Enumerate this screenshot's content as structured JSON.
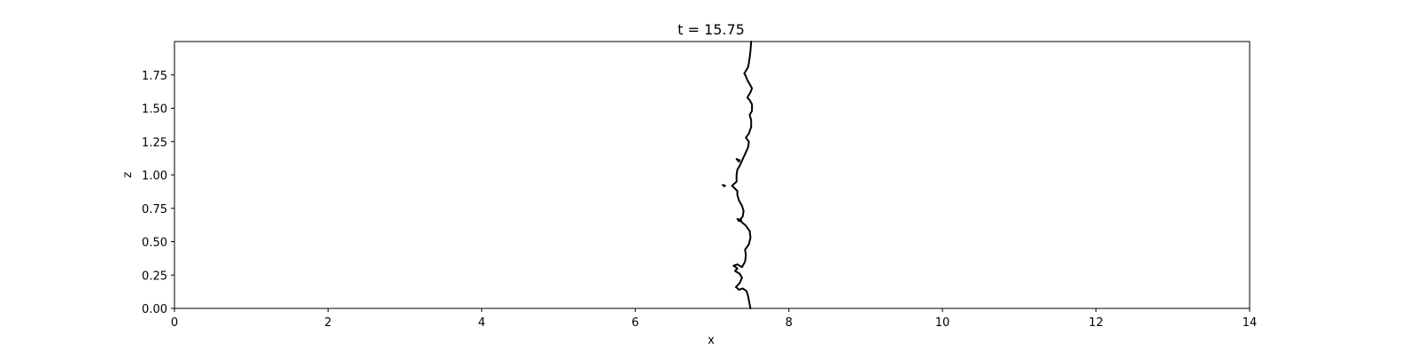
{
  "chart_data": {
    "type": "line",
    "title": "t = 15.75",
    "xlabel": "x",
    "ylabel": "z",
    "xlim": [
      0,
      14
    ],
    "ylim": [
      0,
      2
    ],
    "grid": false,
    "x_ticks": [
      0,
      2,
      4,
      6,
      8,
      10,
      12,
      14
    ],
    "x_tick_labels": [
      "0",
      "2",
      "4",
      "6",
      "8",
      "10",
      "12",
      "14"
    ],
    "y_ticks": [
      0,
      0.25,
      0.5,
      0.75,
      1.0,
      1.25,
      1.5,
      1.75
    ],
    "y_tick_labels": [
      "0.00",
      "0.25",
      "0.50",
      "0.75",
      "1.00",
      "1.25",
      "1.50",
      "1.75"
    ],
    "line_color": "#000000",
    "series": [
      {
        "points": [
          [
            7.5,
            0.0
          ],
          [
            7.49,
            0.03
          ],
          [
            7.48,
            0.06
          ],
          [
            7.47,
            0.09
          ],
          [
            7.45,
            0.13
          ],
          [
            7.4,
            0.15
          ],
          [
            7.35,
            0.14
          ],
          [
            7.31,
            0.16
          ],
          [
            7.36,
            0.19
          ],
          [
            7.39,
            0.23
          ],
          [
            7.36,
            0.26
          ],
          [
            7.3,
            0.28
          ],
          [
            7.33,
            0.3
          ],
          [
            7.28,
            0.32
          ],
          [
            7.33,
            0.33
          ],
          [
            7.39,
            0.31
          ],
          [
            7.43,
            0.35
          ],
          [
            7.44,
            0.4
          ],
          [
            7.43,
            0.44
          ],
          [
            7.48,
            0.48
          ],
          [
            7.5,
            0.53
          ],
          [
            7.49,
            0.58
          ],
          [
            7.44,
            0.62
          ],
          [
            7.4,
            0.64
          ],
          [
            7.36,
            0.66
          ],
          [
            7.4,
            0.69
          ],
          [
            7.41,
            0.73
          ],
          [
            7.39,
            0.77
          ],
          [
            7.35,
            0.81
          ],
          [
            7.33,
            0.85
          ],
          [
            7.33,
            0.88
          ],
          [
            7.26,
            0.92
          ],
          [
            7.32,
            0.95
          ],
          [
            7.32,
            1.0
          ],
          [
            7.33,
            1.04
          ],
          [
            7.37,
            1.08
          ],
          [
            7.4,
            1.12
          ],
          [
            7.44,
            1.17
          ],
          [
            7.47,
            1.21
          ],
          [
            7.48,
            1.25
          ],
          [
            7.44,
            1.28
          ],
          [
            7.48,
            1.31
          ],
          [
            7.51,
            1.36
          ],
          [
            7.51,
            1.41
          ],
          [
            7.49,
            1.45
          ],
          [
            7.52,
            1.48
          ],
          [
            7.52,
            1.53
          ],
          [
            7.49,
            1.56
          ],
          [
            7.46,
            1.58
          ],
          [
            7.5,
            1.62
          ],
          [
            7.52,
            1.65
          ],
          [
            7.49,
            1.68
          ],
          [
            7.46,
            1.71
          ],
          [
            7.44,
            1.74
          ],
          [
            7.42,
            1.76
          ],
          [
            7.44,
            1.78
          ],
          [
            7.47,
            1.81
          ],
          [
            7.48,
            1.84
          ],
          [
            7.49,
            1.88
          ],
          [
            7.5,
            1.93
          ],
          [
            7.51,
            2.0
          ]
        ]
      },
      {
        "points": [
          [
            7.36,
            1.11
          ],
          [
            7.32,
            1.12
          ],
          [
            7.35,
            1.1
          ],
          [
            7.36,
            1.11
          ]
        ]
      },
      {
        "points": [
          [
            7.17,
            0.92
          ],
          [
            7.14,
            0.925
          ],
          [
            7.16,
            0.915
          ],
          [
            7.17,
            0.92
          ]
        ]
      },
      {
        "points": [
          [
            7.38,
            0.66
          ],
          [
            7.33,
            0.67
          ],
          [
            7.35,
            0.655
          ],
          [
            7.38,
            0.66
          ]
        ]
      }
    ]
  }
}
